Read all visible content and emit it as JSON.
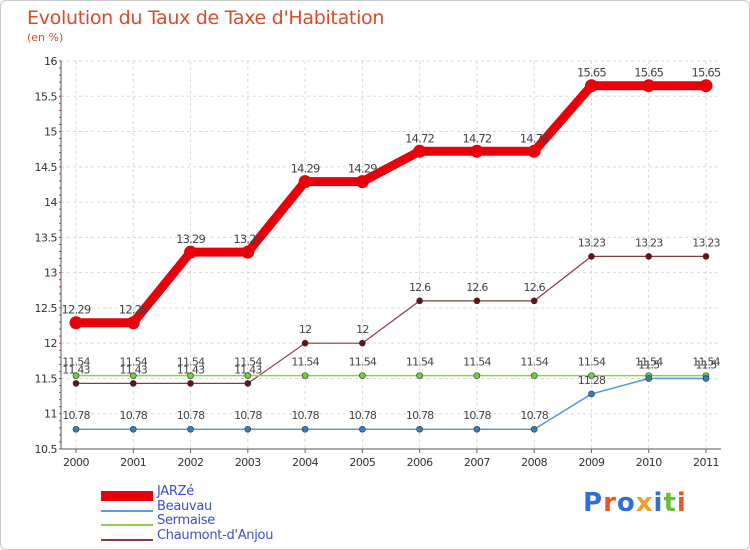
{
  "chart_data": {
    "type": "line",
    "title": "Evolution du Taux de Taxe d'Habitation",
    "ylabel": "(en %)",
    "xlabel": "",
    "categories": [
      "2000",
      "2001",
      "2002",
      "2003",
      "2004",
      "2005",
      "2006",
      "2007",
      "2008",
      "2009",
      "2010",
      "2011"
    ],
    "yticks": [
      "10.5",
      "11",
      "11.5",
      "12",
      "12.5",
      "13",
      "13.5",
      "14",
      "14.5",
      "15",
      "15.5",
      "16"
    ],
    "ylim": [
      10.5,
      16
    ],
    "grid": true,
    "legend_position": "bottom-left",
    "series": [
      {
        "name": "JARZé",
        "color": "#e8000b",
        "values": [
          12.29,
          12.29,
          13.29,
          13.29,
          14.29,
          14.29,
          14.72,
          14.72,
          14.72,
          15.65,
          15.65,
          15.65
        ],
        "labels": [
          "12.29",
          "12.29",
          "13.29",
          "13.29",
          "14.29",
          "14.29",
          "14.72",
          "14.72",
          "14.72",
          "15.65",
          "15.65",
          "15.65"
        ]
      },
      {
        "name": "Beauvau",
        "color": "#5b9bd5",
        "values": [
          10.78,
          10.78,
          10.78,
          10.78,
          10.78,
          10.78,
          10.78,
          10.78,
          10.78,
          11.28,
          11.5,
          11.5
        ],
        "labels": [
          "10.78",
          "10.78",
          "10.78",
          "10.78",
          "10.78",
          "10.78",
          "10.78",
          "10.78",
          "10.78",
          "11.28",
          "11.5",
          "11.5"
        ]
      },
      {
        "name": "Sermaise",
        "color": "#8fd14f",
        "values": [
          11.54,
          11.54,
          11.54,
          11.54,
          11.54,
          11.54,
          11.54,
          11.54,
          11.54,
          11.54,
          11.54,
          11.54
        ],
        "labels": [
          "11.54",
          "11.54",
          "11.54",
          "11.54",
          "11.54",
          "11.54",
          "11.54",
          "11.54",
          "11.54",
          "11.54",
          "11.54",
          "11.54"
        ]
      },
      {
        "name": "Chaumont-d'Anjou",
        "color": "#8b3a3a",
        "values": [
          11.43,
          11.43,
          11.43,
          11.43,
          12,
          12,
          12.6,
          12.6,
          12.6,
          13.23,
          13.23,
          13.23
        ],
        "labels": [
          "11.43",
          "11.43",
          "11.43",
          "11.43",
          "12",
          "12",
          "12.6",
          "12.6",
          "12.6",
          "13.23",
          "13.23",
          "13.23"
        ]
      }
    ]
  },
  "legend": {
    "items": [
      {
        "label": "JARZé",
        "color": "#e8000b"
      },
      {
        "label": "Beauvau",
        "color": "#5b9bd5"
      },
      {
        "label": "Sermaise",
        "color": "#8fd14f"
      },
      {
        "label": "Chaumont-d'Anjou",
        "color": "#8b3a3a"
      }
    ]
  },
  "branding": {
    "logo_text": "Proxiti",
    "letter_colors": [
      "#2f6fd6",
      "#e8562b",
      "#2f6fd6",
      "#f0a02a",
      "#2f6fd6",
      "#6bbf3a",
      "#e8562b"
    ]
  }
}
